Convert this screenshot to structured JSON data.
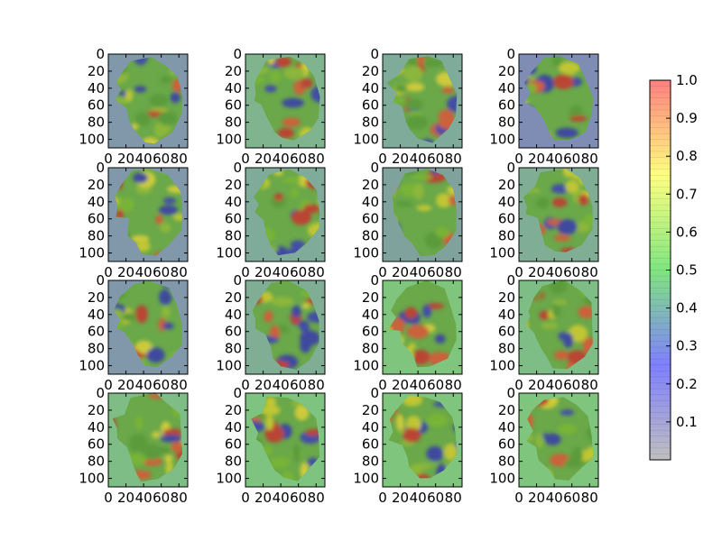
{
  "chart_data": {
    "type": "heatmap",
    "title": "",
    "grid": false,
    "layout": {
      "rows": 4,
      "cols": 4
    },
    "x_ticks": [
      "0",
      "20",
      "40",
      "60",
      "80"
    ],
    "x_tick_values": [
      0,
      20,
      40,
      60,
      80
    ],
    "y_ticks": [
      "0",
      "20",
      "40",
      "60",
      "80",
      "100"
    ],
    "y_tick_values": [
      0,
      20,
      40,
      60,
      80,
      100
    ],
    "xlim": [
      0,
      90
    ],
    "ylim": [
      110,
      0
    ],
    "colormap": [
      "#7f7f7f",
      "#0000ff",
      "#00cc00",
      "#ffff00",
      "#ff0000"
    ],
    "colorbar": {
      "ticks": [
        "0.1",
        "0.2",
        "0.3",
        "0.4",
        "0.5",
        "0.6",
        "0.7",
        "0.8",
        "0.9",
        "1.0"
      ],
      "tick_values": [
        0.1,
        0.2,
        0.3,
        0.4,
        0.5,
        0.6,
        0.7,
        0.8,
        0.9,
        1.0
      ],
      "range": [
        0,
        1
      ]
    },
    "panels": [
      {
        "background": "#8098a9"
      },
      {
        "background": "#7fb48f"
      },
      {
        "background": "#7fab9a"
      },
      {
        "background": "#7f8db4"
      },
      {
        "background": "#8098a9"
      },
      {
        "background": "#7fab9a"
      },
      {
        "background": "#7fa39c"
      },
      {
        "background": "#7fae95"
      },
      {
        "background": "#8098a9"
      },
      {
        "background": "#7fae95"
      },
      {
        "background": "#80c57e"
      },
      {
        "background": "#7fbd87"
      },
      {
        "background": "#7fbd87"
      },
      {
        "background": "#7fc380"
      },
      {
        "background": "#80c57e"
      },
      {
        "background": "#80c57e"
      }
    ]
  }
}
